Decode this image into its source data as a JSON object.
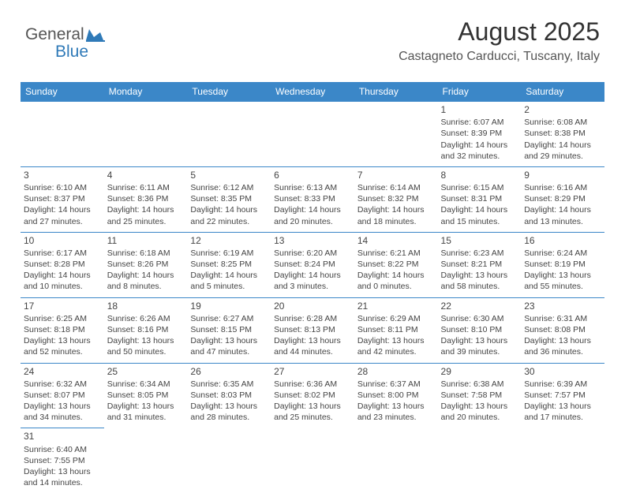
{
  "logo": {
    "text_general": "General",
    "text_blue": "Blue",
    "flag_color": "#2f7ab8"
  },
  "header": {
    "month_title": "August 2025",
    "location": "Castagneto Carducci, Tuscany, Italy"
  },
  "calendar": {
    "header_bg": "#3b87c8",
    "header_fg": "#ffffff",
    "border_color": "#3b87c8",
    "day_headers": [
      "Sunday",
      "Monday",
      "Tuesday",
      "Wednesday",
      "Thursday",
      "Friday",
      "Saturday"
    ],
    "weeks": [
      [
        null,
        null,
        null,
        null,
        null,
        {
          "n": "1",
          "sr": "Sunrise: 6:07 AM",
          "ss": "Sunset: 8:39 PM",
          "dl": "Daylight: 14 hours and 32 minutes."
        },
        {
          "n": "2",
          "sr": "Sunrise: 6:08 AM",
          "ss": "Sunset: 8:38 PM",
          "dl": "Daylight: 14 hours and 29 minutes."
        }
      ],
      [
        {
          "n": "3",
          "sr": "Sunrise: 6:10 AM",
          "ss": "Sunset: 8:37 PM",
          "dl": "Daylight: 14 hours and 27 minutes."
        },
        {
          "n": "4",
          "sr": "Sunrise: 6:11 AM",
          "ss": "Sunset: 8:36 PM",
          "dl": "Daylight: 14 hours and 25 minutes."
        },
        {
          "n": "5",
          "sr": "Sunrise: 6:12 AM",
          "ss": "Sunset: 8:35 PM",
          "dl": "Daylight: 14 hours and 22 minutes."
        },
        {
          "n": "6",
          "sr": "Sunrise: 6:13 AM",
          "ss": "Sunset: 8:33 PM",
          "dl": "Daylight: 14 hours and 20 minutes."
        },
        {
          "n": "7",
          "sr": "Sunrise: 6:14 AM",
          "ss": "Sunset: 8:32 PM",
          "dl": "Daylight: 14 hours and 18 minutes."
        },
        {
          "n": "8",
          "sr": "Sunrise: 6:15 AM",
          "ss": "Sunset: 8:31 PM",
          "dl": "Daylight: 14 hours and 15 minutes."
        },
        {
          "n": "9",
          "sr": "Sunrise: 6:16 AM",
          "ss": "Sunset: 8:29 PM",
          "dl": "Daylight: 14 hours and 13 minutes."
        }
      ],
      [
        {
          "n": "10",
          "sr": "Sunrise: 6:17 AM",
          "ss": "Sunset: 8:28 PM",
          "dl": "Daylight: 14 hours and 10 minutes."
        },
        {
          "n": "11",
          "sr": "Sunrise: 6:18 AM",
          "ss": "Sunset: 8:26 PM",
          "dl": "Daylight: 14 hours and 8 minutes."
        },
        {
          "n": "12",
          "sr": "Sunrise: 6:19 AM",
          "ss": "Sunset: 8:25 PM",
          "dl": "Daylight: 14 hours and 5 minutes."
        },
        {
          "n": "13",
          "sr": "Sunrise: 6:20 AM",
          "ss": "Sunset: 8:24 PM",
          "dl": "Daylight: 14 hours and 3 minutes."
        },
        {
          "n": "14",
          "sr": "Sunrise: 6:21 AM",
          "ss": "Sunset: 8:22 PM",
          "dl": "Daylight: 14 hours and 0 minutes."
        },
        {
          "n": "15",
          "sr": "Sunrise: 6:23 AM",
          "ss": "Sunset: 8:21 PM",
          "dl": "Daylight: 13 hours and 58 minutes."
        },
        {
          "n": "16",
          "sr": "Sunrise: 6:24 AM",
          "ss": "Sunset: 8:19 PM",
          "dl": "Daylight: 13 hours and 55 minutes."
        }
      ],
      [
        {
          "n": "17",
          "sr": "Sunrise: 6:25 AM",
          "ss": "Sunset: 8:18 PM",
          "dl": "Daylight: 13 hours and 52 minutes."
        },
        {
          "n": "18",
          "sr": "Sunrise: 6:26 AM",
          "ss": "Sunset: 8:16 PM",
          "dl": "Daylight: 13 hours and 50 minutes."
        },
        {
          "n": "19",
          "sr": "Sunrise: 6:27 AM",
          "ss": "Sunset: 8:15 PM",
          "dl": "Daylight: 13 hours and 47 minutes."
        },
        {
          "n": "20",
          "sr": "Sunrise: 6:28 AM",
          "ss": "Sunset: 8:13 PM",
          "dl": "Daylight: 13 hours and 44 minutes."
        },
        {
          "n": "21",
          "sr": "Sunrise: 6:29 AM",
          "ss": "Sunset: 8:11 PM",
          "dl": "Daylight: 13 hours and 42 minutes."
        },
        {
          "n": "22",
          "sr": "Sunrise: 6:30 AM",
          "ss": "Sunset: 8:10 PM",
          "dl": "Daylight: 13 hours and 39 minutes."
        },
        {
          "n": "23",
          "sr": "Sunrise: 6:31 AM",
          "ss": "Sunset: 8:08 PM",
          "dl": "Daylight: 13 hours and 36 minutes."
        }
      ],
      [
        {
          "n": "24",
          "sr": "Sunrise: 6:32 AM",
          "ss": "Sunset: 8:07 PM",
          "dl": "Daylight: 13 hours and 34 minutes."
        },
        {
          "n": "25",
          "sr": "Sunrise: 6:34 AM",
          "ss": "Sunset: 8:05 PM",
          "dl": "Daylight: 13 hours and 31 minutes."
        },
        {
          "n": "26",
          "sr": "Sunrise: 6:35 AM",
          "ss": "Sunset: 8:03 PM",
          "dl": "Daylight: 13 hours and 28 minutes."
        },
        {
          "n": "27",
          "sr": "Sunrise: 6:36 AM",
          "ss": "Sunset: 8:02 PM",
          "dl": "Daylight: 13 hours and 25 minutes."
        },
        {
          "n": "28",
          "sr": "Sunrise: 6:37 AM",
          "ss": "Sunset: 8:00 PM",
          "dl": "Daylight: 13 hours and 23 minutes."
        },
        {
          "n": "29",
          "sr": "Sunrise: 6:38 AM",
          "ss": "Sunset: 7:58 PM",
          "dl": "Daylight: 13 hours and 20 minutes."
        },
        {
          "n": "30",
          "sr": "Sunrise: 6:39 AM",
          "ss": "Sunset: 7:57 PM",
          "dl": "Daylight: 13 hours and 17 minutes."
        }
      ],
      [
        {
          "n": "31",
          "sr": "Sunrise: 6:40 AM",
          "ss": "Sunset: 7:55 PM",
          "dl": "Daylight: 13 hours and 14 minutes."
        },
        null,
        null,
        null,
        null,
        null,
        null
      ]
    ]
  }
}
